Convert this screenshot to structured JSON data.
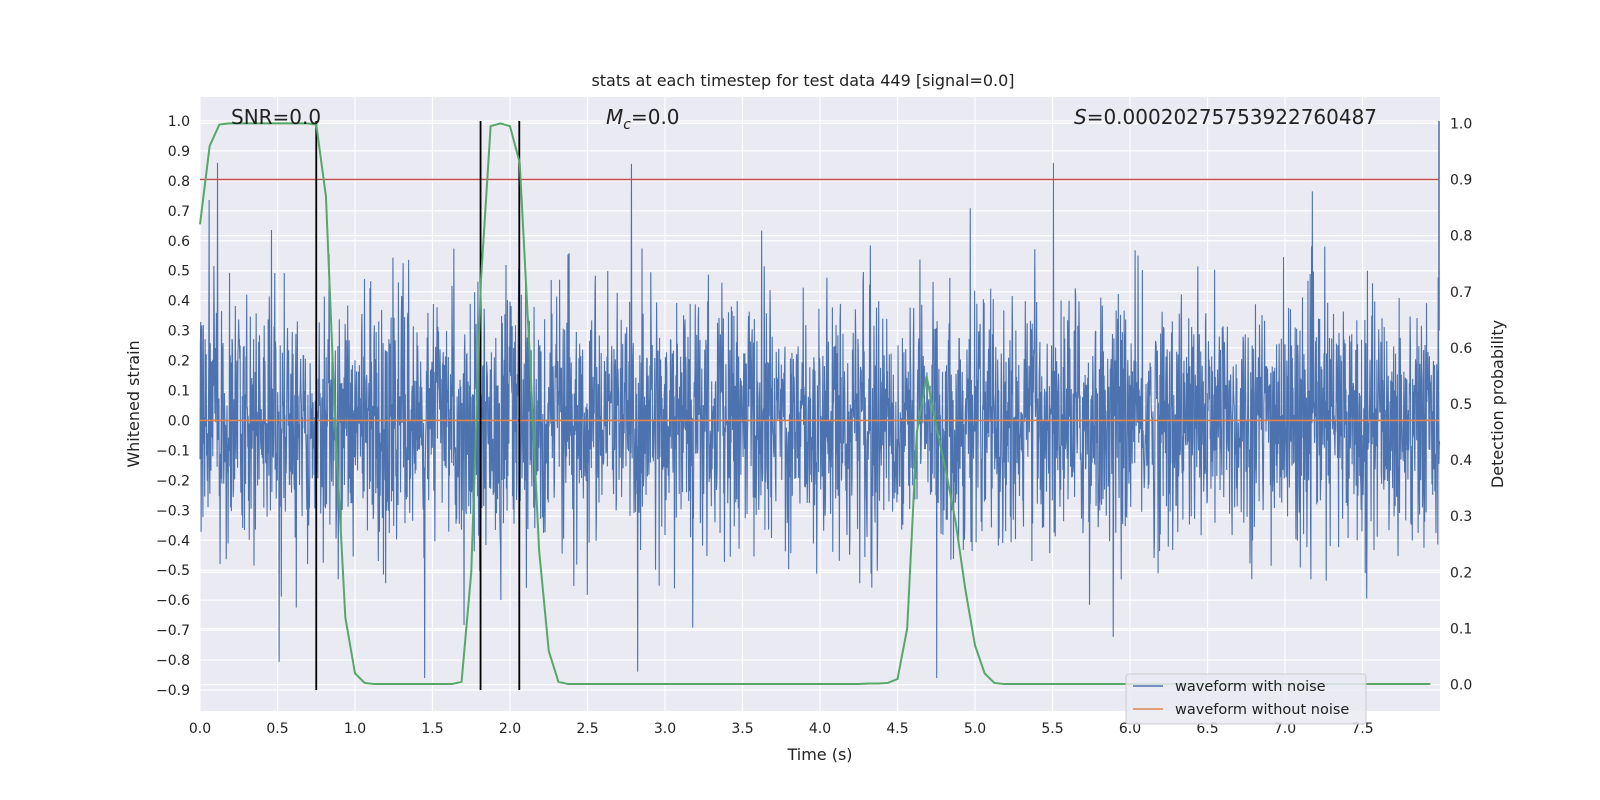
{
  "chart_data": {
    "type": "line",
    "title": "stats at each timestep for test data 449 [signal=0.0]",
    "xlabel": "Time (s)",
    "ylabel": "Whitened strain",
    "y2label": "Detection probability",
    "xlim": [
      0.0,
      8.0
    ],
    "ylim": [
      -0.97,
      1.08
    ],
    "y2lim": [
      -0.047,
      1.047
    ],
    "x_ticks": [
      "0.0",
      "0.5",
      "1.0",
      "1.5",
      "2.0",
      "2.5",
      "3.0",
      "3.5",
      "4.0",
      "4.5",
      "5.0",
      "5.5",
      "6.0",
      "6.5",
      "7.0",
      "7.5"
    ],
    "y_ticks": [
      "−0.9",
      "−0.8",
      "−0.7",
      "−0.6",
      "−0.5",
      "−0.4",
      "−0.3",
      "−0.2",
      "−0.1",
      "0.0",
      "0.1",
      "0.2",
      "0.3",
      "0.4",
      "0.5",
      "0.6",
      "0.7",
      "0.8",
      "0.9",
      "1.0"
    ],
    "y2_ticks": [
      "0.0",
      "0.1",
      "0.2",
      "0.3",
      "0.4",
      "0.5",
      "0.6",
      "0.7",
      "0.8",
      "0.9",
      "1.0"
    ],
    "annotations": {
      "snr": "SNR=0.0",
      "mc_symbol": "M",
      "mc_sub": "c",
      "mc_value": "=0.0",
      "s_symbol": "S",
      "s_value": "=0.00020275753922760487"
    },
    "legend": [
      "waveform with noise",
      "waveform without noise"
    ],
    "series": [
      {
        "name": "waveform with noise",
        "color": "#4c72b0",
        "description": "dense whitened noise, t = 0.0 to 8.0 s, amplitude mostly within ±0.4 with peaks near ±0.85"
      },
      {
        "name": "waveform without noise",
        "color": "#dd8452",
        "x": [
          0.0,
          8.0
        ],
        "values": [
          0.0,
          0.0
        ]
      },
      {
        "name": "detection probability",
        "axis": "right",
        "color": "#55a868",
        "x": [
          0.0,
          0.0625,
          0.125,
          0.1875,
          0.25,
          0.3125,
          0.375,
          0.4375,
          0.5,
          0.5625,
          0.625,
          0.6875,
          0.75,
          0.8125,
          0.875,
          0.9375,
          1.0,
          1.0625,
          1.125,
          1.1875,
          1.25,
          1.3125,
          1.375,
          1.4375,
          1.5,
          1.5625,
          1.625,
          1.6875,
          1.75,
          1.8125,
          1.875,
          1.9375,
          2.0,
          2.0625,
          2.125,
          2.1875,
          2.25,
          2.3125,
          2.375,
          2.4375,
          2.5,
          2.5625,
          2.625,
          2.6875,
          2.75,
          2.8125,
          2.875,
          2.9375,
          3.0,
          3.0625,
          3.125,
          3.1875,
          3.25,
          3.3125,
          3.375,
          3.4375,
          3.5,
          3.5625,
          3.625,
          3.6875,
          3.75,
          3.8125,
          3.875,
          3.9375,
          4.0,
          4.0625,
          4.125,
          4.1875,
          4.25,
          4.3125,
          4.375,
          4.4375,
          4.5,
          4.5625,
          4.625,
          4.6875,
          4.75,
          4.8125,
          4.875,
          4.9375,
          5.0,
          5.0625,
          5.125,
          5.1875,
          5.25,
          5.3125,
          5.375,
          5.4375,
          5.5,
          5.5625,
          5.625,
          5.6875,
          5.75,
          5.8125,
          5.875,
          5.9375,
          6.0,
          6.0625,
          6.125,
          6.1875,
          6.25,
          6.3125,
          6.375,
          6.4375,
          6.5,
          6.5625,
          6.625,
          6.6875,
          6.75,
          6.8125,
          6.875,
          6.9375,
          7.0,
          7.0625,
          7.125,
          7.1875,
          7.25,
          7.3125,
          7.375,
          7.4375,
          7.5,
          7.5625,
          7.625,
          7.6875,
          7.75,
          7.8125,
          7.875,
          7.9375
        ],
        "values": [
          0.82,
          0.96,
          0.998,
          1.0,
          1.0,
          1.0,
          1.0,
          1.0,
          1.0,
          1.0,
          1.0,
          1.0,
          0.998,
          0.87,
          0.45,
          0.12,
          0.02,
          0.003,
          0.001,
          0.001,
          0.001,
          0.001,
          0.001,
          0.001,
          0.001,
          0.001,
          0.001,
          0.005,
          0.2,
          0.72,
          0.995,
          1.0,
          0.995,
          0.93,
          0.6,
          0.24,
          0.06,
          0.005,
          0.001,
          0.001,
          0.001,
          0.001,
          0.001,
          0.001,
          0.001,
          0.001,
          0.001,
          0.001,
          0.001,
          0.001,
          0.001,
          0.001,
          0.001,
          0.001,
          0.001,
          0.001,
          0.001,
          0.001,
          0.001,
          0.001,
          0.001,
          0.001,
          0.001,
          0.001,
          0.001,
          0.001,
          0.001,
          0.001,
          0.001,
          0.002,
          0.002,
          0.003,
          0.01,
          0.1,
          0.45,
          0.55,
          0.46,
          0.38,
          0.29,
          0.17,
          0.07,
          0.02,
          0.003,
          0.001,
          0.001,
          0.001,
          0.001,
          0.001,
          0.001,
          0.001,
          0.001,
          0.001,
          0.001,
          0.001,
          0.001,
          0.001,
          0.001,
          0.001,
          0.001,
          0.001,
          0.001,
          0.001,
          0.001,
          0.001,
          0.001,
          0.001,
          0.001,
          0.001,
          0.001,
          0.001,
          0.001,
          0.001,
          0.001,
          0.001,
          0.001,
          0.001,
          0.001,
          0.001,
          0.001,
          0.001,
          0.001,
          0.001,
          0.001,
          0.001,
          0.001,
          0.001,
          0.001,
          0.001
        ]
      }
    ],
    "threshold": {
      "axis": "right",
      "value": 0.9,
      "color": "#c44e52"
    },
    "vlines": {
      "x": [
        0.75,
        1.81,
        2.06
      ],
      "ymin": -0.9,
      "ymax": 1.0,
      "color": "#000000"
    }
  }
}
